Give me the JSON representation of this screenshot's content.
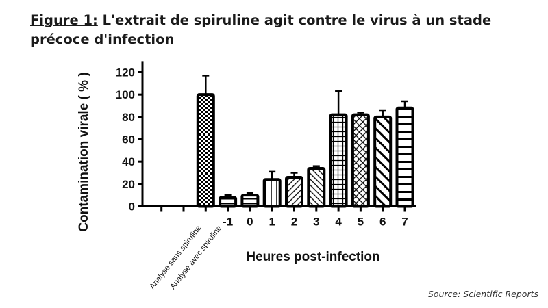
{
  "title": {
    "prefix": "Figure 1:",
    "text": " L'extrait de spiruline agit contre le virus à un stade précoce d'infection"
  },
  "source": {
    "label": "Source:",
    "text": " Scientific Reports"
  },
  "chart_data": {
    "type": "bar",
    "title": "",
    "xlabel": "Heures post-infection",
    "ylabel": "Contamination virale ( % )",
    "ylim": [
      0,
      125
    ],
    "yticks": [
      0,
      20,
      40,
      60,
      80,
      100,
      120
    ],
    "grid": false,
    "categories": [
      "Analyse sans spiruline",
      "Analyse avec spiruline",
      "",
      "-1",
      "0",
      "1",
      "2",
      "3",
      "4",
      "5",
      "6",
      "7"
    ],
    "rotated_labels": [
      "Analyse sans spiruline",
      "Analyse avec spiruline"
    ],
    "values": [
      null,
      null,
      100,
      8,
      10,
      24,
      26,
      34,
      82,
      82,
      80,
      88
    ],
    "error_upper": [
      null,
      null,
      117,
      10,
      12,
      31,
      30,
      36,
      103,
      84,
      86,
      94
    ],
    "patterns": [
      "none",
      "none",
      "checker",
      "horizontal",
      "horizontal",
      "vertical",
      "diagonal-right",
      "diagonal-left",
      "grid",
      "crosshatch",
      "diagonal-left-thick",
      "horizontal-wide"
    ],
    "bar_color": "#000000"
  }
}
